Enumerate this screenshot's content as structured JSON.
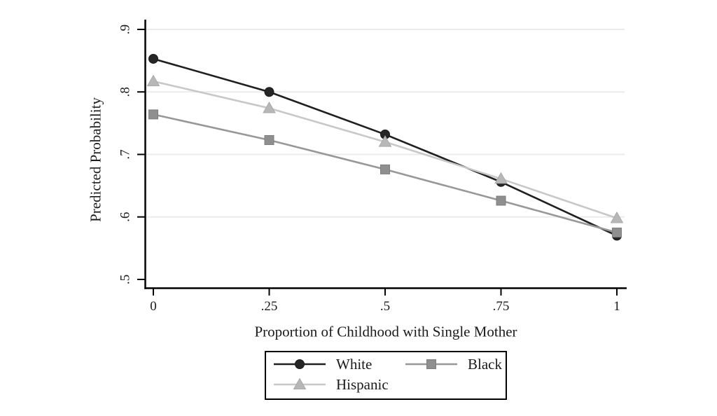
{
  "chart_data": {
    "type": "line",
    "title": "",
    "xlabel": "Proportion of Childhood with Single Mother",
    "ylabel": "Predicted Probability",
    "xlim": [
      0,
      1
    ],
    "ylim": [
      0.5,
      0.9
    ],
    "x": [
      0,
      0.25,
      0.5,
      0.75,
      1
    ],
    "xtick_labels": [
      "0",
      ".25",
      ".5",
      ".75",
      "1"
    ],
    "yticks": [
      0.5,
      0.6,
      0.7,
      0.8,
      0.9
    ],
    "ytick_labels": [
      ".5",
      ".6",
      ".7",
      ".8",
      ".9"
    ],
    "grid": "horizontal gridlines at 0.6, 0.7, 0.8, 0.9 (none at 0.5)",
    "legend_position": "bottom-center, boxed, two columns",
    "series": [
      {
        "name": "White",
        "marker": "circle",
        "line_color": "#1f1f1f",
        "marker_color": "#262626",
        "marker_edge": "#1a1a1a",
        "values": [
          0.853,
          0.8,
          0.732,
          0.656,
          0.57
        ]
      },
      {
        "name": "Black",
        "marker": "square",
        "line_color": "#989898",
        "marker_color": "#8f8f8f",
        "marker_edge": "#7d7d7d",
        "values": [
          0.764,
          0.723,
          0.676,
          0.626,
          0.575
        ]
      },
      {
        "name": "Hispanic",
        "marker": "triangle",
        "line_color": "#c8c8c8",
        "marker_color": "#b7b7b7",
        "marker_edge": "#a9a9a9",
        "values": [
          0.817,
          0.774,
          0.72,
          0.661,
          0.598
        ]
      }
    ]
  },
  "colors": {
    "background": "#ffffff",
    "axis": "#000000",
    "grid": "#eaecec",
    "text": "#1a1a1a",
    "legend_border": "#000000"
  }
}
